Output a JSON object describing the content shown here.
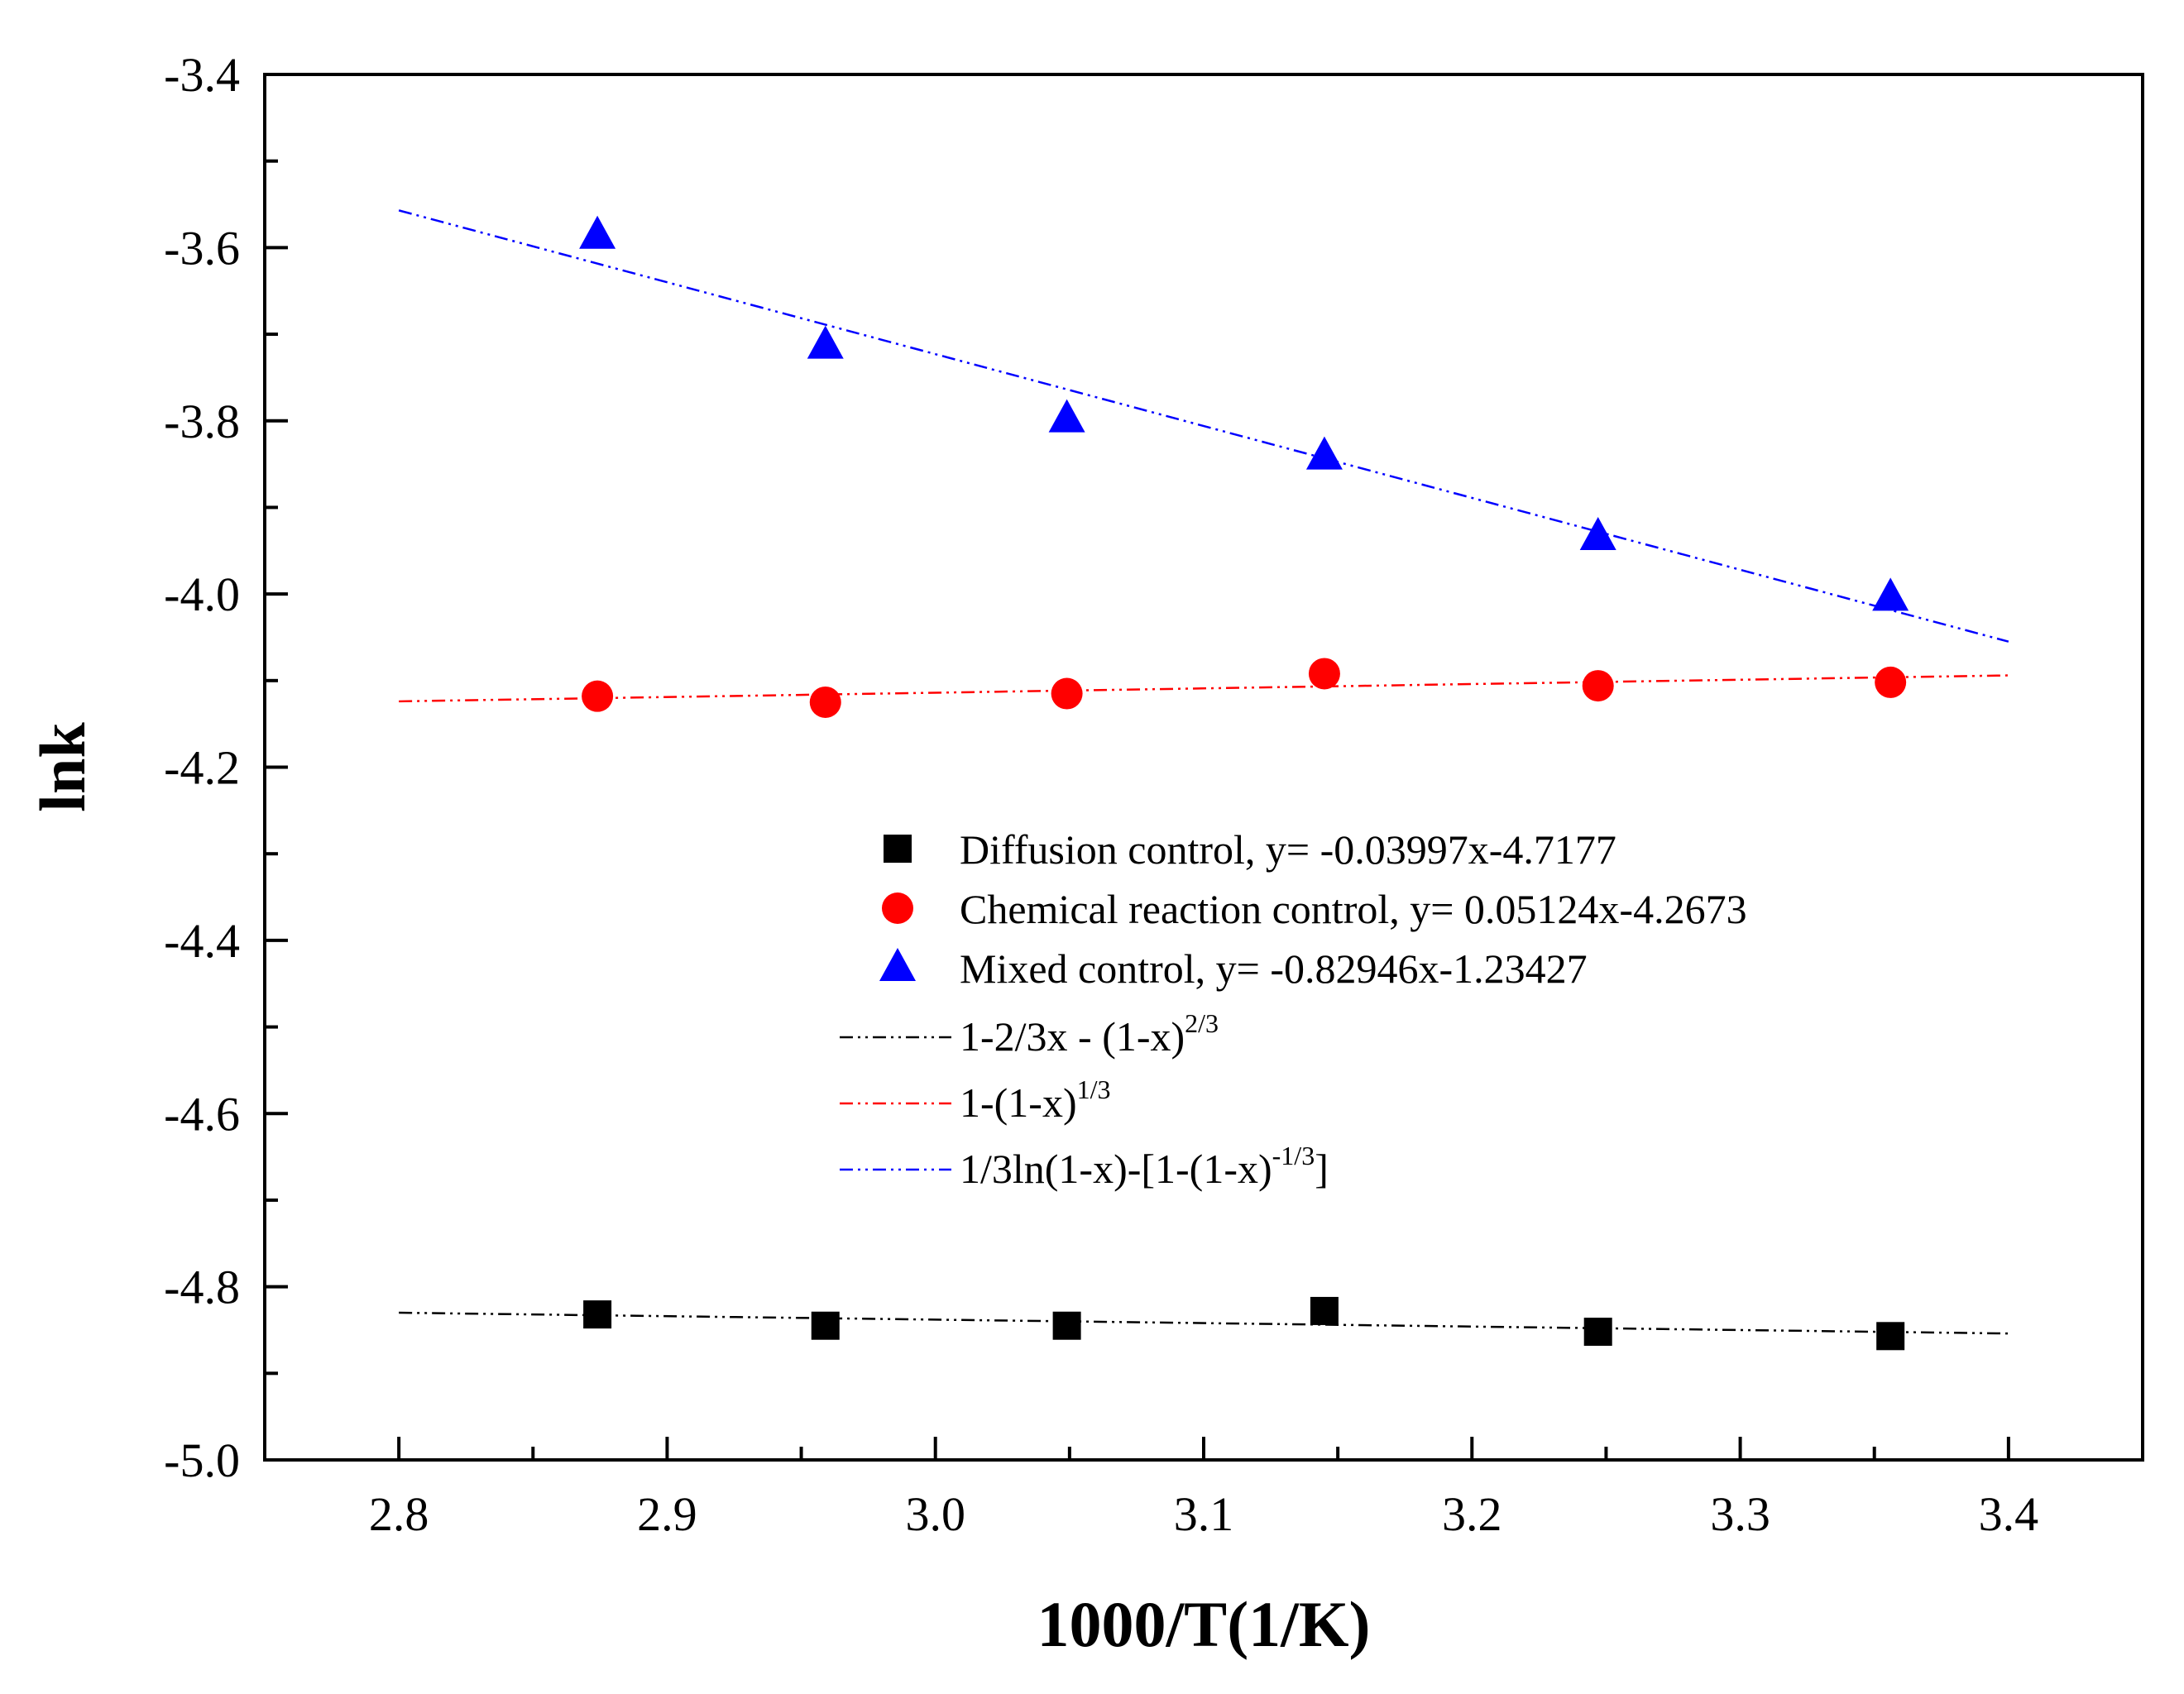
{
  "chart_data": {
    "type": "scatter",
    "title": "",
    "xlabel": "1000/T(1/K)",
    "ylabel": "lnk",
    "xlim": [
      2.75,
      3.45
    ],
    "ylim": [
      -5.0,
      -3.4
    ],
    "grid": false,
    "legend_position": "center",
    "x_ticks": [
      2.8,
      2.9,
      3.0,
      3.1,
      3.2,
      3.3,
      3.4
    ],
    "x_tick_labels": [
      "2.8",
      "2.9",
      "3.0",
      "3.1",
      "3.2",
      "3.3",
      "3.4"
    ],
    "y_ticks": [
      -3.4,
      -3.6,
      -3.8,
      -4.0,
      -4.2,
      -4.4,
      -4.6,
      -4.8,
      -5.0
    ],
    "y_tick_labels": [
      "-3.4",
      "-3.6",
      "-3.8",
      "-4.0",
      "-4.2",
      "-4.4",
      "-4.6",
      "-4.8",
      "-5.0"
    ],
    "series": [
      {
        "name": "Diffusion control",
        "legend_label": "Diffusion control, y= -0.03997x-4.7177",
        "marker": "square",
        "color": "#000000",
        "x": [
          2.874,
          2.959,
          3.049,
          3.145,
          3.247,
          3.356
        ],
        "y": [
          -4.832,
          -4.845,
          -4.845,
          -4.828,
          -4.852,
          -4.857
        ]
      },
      {
        "name": "Chemical reaction control",
        "legend_label": "Chemical reaction control, y= 0.05124x-4.2673",
        "marker": "circle",
        "color": "#ff0000",
        "x": [
          2.874,
          2.959,
          3.049,
          3.145,
          3.247,
          3.356
        ],
        "y": [
          -4.118,
          -4.125,
          -4.115,
          -4.092,
          -4.106,
          -4.102
        ]
      },
      {
        "name": "Mixed control",
        "legend_label": "Mixed control, y= -0.82946x-1.23427",
        "marker": "triangle",
        "color": "#0000ff",
        "x": [
          2.874,
          2.959,
          3.049,
          3.145,
          3.247,
          3.356
        ],
        "y": [
          -3.586,
          -3.713,
          -3.798,
          -3.841,
          -3.934,
          -4.004
        ]
      }
    ],
    "fit_lines": [
      {
        "name": "diffusion-fit",
        "legend_label": {
          "base": "1-2/3x - (1-x)",
          "sup": "2/3",
          "tail": ""
        },
        "color": "#000000",
        "x": [
          2.8,
          3.4
        ],
        "y": [
          -4.83,
          -4.854
        ]
      },
      {
        "name": "reaction-fit",
        "legend_label": {
          "base": "1-(1-x)",
          "sup": "1/3",
          "tail": ""
        },
        "color": "#ff0000",
        "x": [
          2.8,
          3.4
        ],
        "y": [
          -4.124,
          -4.094
        ]
      },
      {
        "name": "mixed-fit",
        "legend_label": {
          "base": "1/3ln(1-x)-[1-(1-x)",
          "sup": "-1/3",
          "tail": "]"
        },
        "color": "#0000ff",
        "x": [
          2.8,
          3.4
        ],
        "y": [
          -3.557,
          -4.055
        ]
      }
    ]
  }
}
